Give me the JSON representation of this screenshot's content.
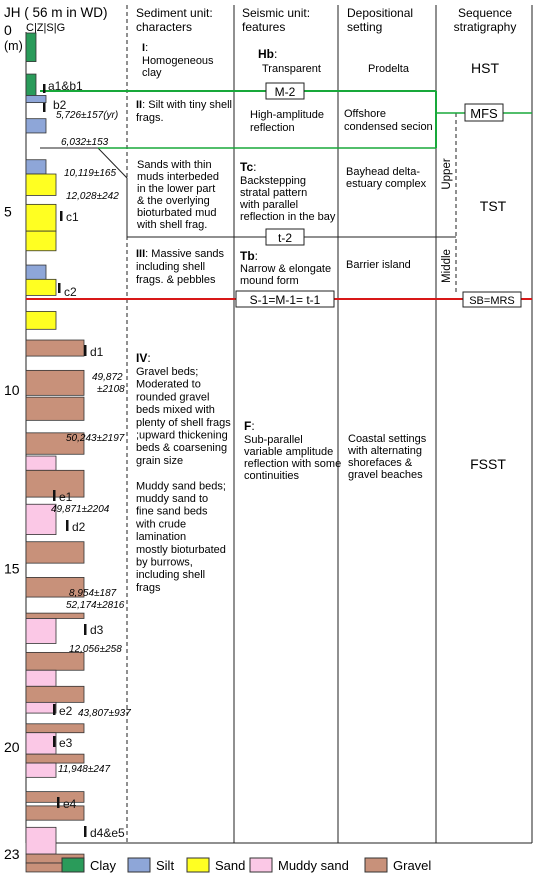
{
  "column_title": "JH ( 56 m in WD)",
  "grain_scale": "C|Z|S|G",
  "depth_unit": "(m)",
  "depth_ticks": [
    {
      "label": "0",
      "depth": 0
    },
    {
      "label": "5",
      "depth": 5
    },
    {
      "label": "10",
      "depth": 10
    },
    {
      "label": "15",
      "depth": 15
    },
    {
      "label": "20",
      "depth": 20
    },
    {
      "label": "23",
      "depth": 23
    }
  ],
  "headers": {
    "sediment": [
      "Sediment unit:",
      "characters"
    ],
    "seismic": [
      "Seismic unit:",
      "features"
    ],
    "depositional": [
      "Depositional",
      "setting"
    ],
    "sequence": [
      "Sequence",
      "stratigraphy"
    ]
  },
  "units": {
    "I": {
      "label": "I",
      "sep": ":",
      "text": [
        "Homogeneous",
        "clay"
      ]
    },
    "II": {
      "label": "II",
      "sep": ":",
      "text": [
        "Silt with tiny shell",
        "frags."
      ]
    },
    "III": {
      "label": "III",
      "sep": ":",
      "text": [
        "Massive sands",
        "including shell",
        "frags. & pebbles"
      ]
    },
    "IV": {
      "label": "IV",
      "sep": ":",
      "text": [
        "Gravel beds;",
        "Moderated to",
        "rounded gravel",
        "beds mixed with",
        "plenty of shell frags",
        ";upward thickening",
        "beds & coarsening",
        "grain size",
        "",
        "Muddy sand beds;",
        "muddy sand to",
        "fine sand beds",
        "with crude",
        "lamination",
        "mostly bioturbated",
        "by burrows,",
        "including shell",
        "frags"
      ]
    },
    "sands_note": [
      "Sands with thin",
      "muds interbeded",
      "in the lower part",
      "& the overlying",
      "bioturbated mud",
      "with shell frag."
    ]
  },
  "seismic_units": {
    "Hb": {
      "label": "Hb",
      "sep": ":",
      "text": [
        "Transparent"
      ]
    },
    "II": {
      "text": [
        "High-amplitude",
        "reflection"
      ]
    },
    "Tc": {
      "label": "Tc",
      "sep": ":",
      "text": [
        "Backstepping",
        "stratal pattern",
        "with parallel",
        "reflection in the bay"
      ]
    },
    "Tb": {
      "label": "Tb",
      "sep": ":",
      "text": [
        "Narrow & elongate",
        "mound form"
      ]
    },
    "F": {
      "label": "F",
      "sep": ":",
      "text": [
        "Sub-parallel",
        "variable amplitude",
        "reflection with some",
        "continuities"
      ]
    }
  },
  "settings": {
    "prodelta": [
      "Prodelta"
    ],
    "offshore": [
      "Offshore",
      "condensed secion"
    ],
    "bayhead": [
      "Bayhead delta-",
      "estuary complex"
    ],
    "barrier": [
      "Barrier island"
    ],
    "coastal": [
      "Coastal settings",
      "with alternating",
      "shorefaces &",
      "gravel beaches"
    ]
  },
  "sequence": {
    "HST": "HST",
    "MFS": "MFS",
    "TST": "TST",
    "FSST": "FSST",
    "SB": "SB=MRS",
    "upper": "Upper",
    "middle": "Middle"
  },
  "surfaces": {
    "M2": "M-2",
    "t2": "t-2",
    "S1": "S-1=M-1= t-1"
  },
  "sample_labels": [
    "a1&b1",
    "b2",
    "c1",
    "c2",
    "d1",
    "d2",
    "d3",
    "e1",
    "e2",
    "e3",
    "e4",
    "d4&e5"
  ],
  "ages": [
    [
      "5,726±157(yr)"
    ],
    [
      "6,032±153"
    ],
    [
      "10,119±165"
    ],
    [
      "12,028±242"
    ],
    [
      "49,872",
      "±2108"
    ],
    [
      "50,243±2197"
    ],
    [
      "49,871±2204"
    ],
    [
      "8,954±187"
    ],
    [
      "52,174±2816"
    ],
    [
      "12,056±258"
    ],
    [
      "43,807±937"
    ],
    [
      "11,948±247"
    ]
  ],
  "legend": [
    {
      "name": "Clay",
      "color": "#2a9b5a"
    },
    {
      "name": "Silt",
      "color": "#8ea6d8"
    },
    {
      "name": "Sand",
      "color": "#ffff22"
    },
    {
      "name": "Muddy sand",
      "color": "#fbc8e6"
    },
    {
      "name": "Gravel",
      "color": "#c8917a"
    }
  ],
  "lithology_colors": {
    "clay": "#2a9b5a",
    "silt": "#8ea6d8",
    "sand": "#ffff22",
    "muddy_sand": "#fbc8e6",
    "gravel": "#c8917a",
    "mfs_line": "#18a83a",
    "sb_line": "#d81818"
  },
  "lithology": [
    {
      "lith": "clay",
      "top": 0,
      "bottom": 0.8,
      "grain": "clay"
    },
    {
      "lith": "clay",
      "top": 1.15,
      "bottom": 1.75,
      "grain": "clay"
    },
    {
      "lith": "silt",
      "top": 1.75,
      "bottom": 1.95,
      "grain": "silt"
    },
    {
      "lith": "silt",
      "top": 2.4,
      "bottom": 2.8,
      "grain": "silt"
    },
    {
      "lith": "silt",
      "top": 3.55,
      "bottom": 3.95,
      "grain": "silt"
    },
    {
      "lith": "sand",
      "top": 3.95,
      "bottom": 4.55,
      "grain": "sand"
    },
    {
      "lith": "sand",
      "top": 4.8,
      "bottom": 5.55,
      "grain": "sand"
    },
    {
      "lith": "sand",
      "top": 5.55,
      "bottom": 6.1,
      "grain": "sand"
    },
    {
      "lith": "silt",
      "top": 6.5,
      "bottom": 6.9,
      "grain": "silt"
    },
    {
      "lith": "sand",
      "top": 6.9,
      "bottom": 7.35,
      "grain": "sand"
    },
    {
      "lith": "sand",
      "top": 7.8,
      "bottom": 8.3,
      "grain": "sand"
    },
    {
      "lith": "gravel",
      "top": 8.6,
      "bottom": 9.05,
      "grain": "gravel"
    },
    {
      "lith": "gravel",
      "top": 9.45,
      "bottom": 10.15,
      "grain": "gravel"
    },
    {
      "lith": "gravel",
      "top": 10.2,
      "bottom": 10.85,
      "grain": "gravel"
    },
    {
      "lith": "gravel",
      "top": 11.2,
      "bottom": 11.8,
      "grain": "gravel"
    },
    {
      "lith": "muddy_sand",
      "top": 11.85,
      "bottom": 12.25,
      "grain": "sand"
    },
    {
      "lith": "gravel",
      "top": 12.25,
      "bottom": 13.0,
      "grain": "gravel"
    },
    {
      "lith": "muddy_sand",
      "top": 13.2,
      "bottom": 14.05,
      "grain": "sand"
    },
    {
      "lith": "gravel",
      "top": 14.25,
      "bottom": 14.85,
      "grain": "gravel"
    },
    {
      "lith": "gravel",
      "top": 15.25,
      "bottom": 15.8,
      "grain": "gravel"
    },
    {
      "lith": "gravel",
      "top": 16.25,
      "bottom": 16.4,
      "grain": "gravel"
    },
    {
      "lith": "muddy_sand",
      "top": 16.4,
      "bottom": 17.1,
      "grain": "sand"
    },
    {
      "lith": "gravel",
      "top": 17.35,
      "bottom": 17.85,
      "grain": "gravel"
    },
    {
      "lith": "muddy_sand",
      "top": 17.85,
      "bottom": 18.3,
      "grain": "sand"
    },
    {
      "lith": "gravel",
      "top": 18.3,
      "bottom": 18.75,
      "grain": "gravel"
    },
    {
      "lith": "muddy_sand",
      "top": 18.75,
      "bottom": 19.05,
      "grain": "sand"
    },
    {
      "lith": "gravel",
      "top": 19.35,
      "bottom": 19.6,
      "grain": "gravel"
    },
    {
      "lith": "muddy_sand",
      "top": 19.6,
      "bottom": 20.2,
      "grain": "sand"
    },
    {
      "lith": "gravel",
      "top": 20.2,
      "bottom": 20.45,
      "grain": "gravel"
    },
    {
      "lith": "muddy_sand",
      "top": 20.45,
      "bottom": 20.85,
      "grain": "sand"
    },
    {
      "lith": "gravel",
      "top": 21.25,
      "bottom": 21.55,
      "grain": "gravel"
    },
    {
      "lith": "gravel",
      "top": 21.65,
      "bottom": 22.05,
      "grain": "gravel"
    },
    {
      "lith": "muddy_sand",
      "top": 22.25,
      "bottom": 23.0,
      "grain": "sand"
    },
    {
      "lith": "gravel",
      "top": 23.0,
      "bottom": 23.25,
      "grain": "gravel"
    },
    {
      "lith": "gravel",
      "top": 23.25,
      "bottom": 23.5,
      "grain": "gravel"
    }
  ]
}
